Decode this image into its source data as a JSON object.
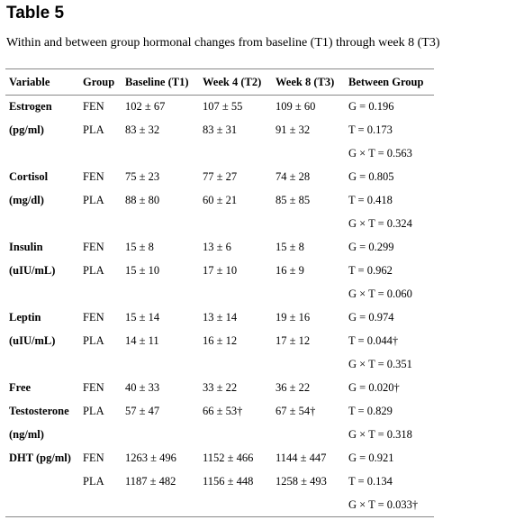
{
  "title": "Table 5",
  "caption": "Within and between group hormonal changes from baseline (T1) through week 8 (T3)",
  "headers": [
    "Variable",
    "Group",
    "Baseline (T1)",
    "Week 4 (T2)",
    "Week 8 (T3)",
    "Between Group"
  ],
  "rows": [
    [
      "Estrogen",
      "FEN",
      "102 ± 67",
      "107 ± 55",
      "109 ± 60",
      "G = 0.196"
    ],
    [
      "(pg/ml)",
      "PLA",
      "83 ± 32",
      "83 ± 31",
      "91 ± 32",
      "T = 0.173"
    ],
    [
      "",
      "",
      "",
      "",
      "",
      "G × T = 0.563"
    ],
    [
      "Cortisol",
      "FEN",
      "75 ± 23",
      "77 ± 27",
      "74 ± 28",
      "G = 0.805"
    ],
    [
      "(mg/dl)",
      "PLA",
      "88 ± 80",
      "60 ± 21",
      "85 ± 85",
      "T = 0.418"
    ],
    [
      "",
      "",
      "",
      "",
      "",
      "G × T = 0.324"
    ],
    [
      "Insulin",
      "FEN",
      "15 ± 8",
      "13 ± 6",
      "15 ± 8",
      "G = 0.299"
    ],
    [
      "(uIU/mL)",
      "PLA",
      "15 ± 10",
      "17 ± 10",
      "16 ± 9",
      "T = 0.962"
    ],
    [
      "",
      "",
      "",
      "",
      "",
      "G × T = 0.060"
    ],
    [
      "Leptin",
      "FEN",
      "15 ± 14",
      "13 ± 14",
      "19 ± 16",
      "G = 0.974"
    ],
    [
      "(uIU/mL)",
      "PLA",
      "14 ± 11",
      "16 ± 12",
      "17 ± 12",
      "T = 0.044†"
    ],
    [
      "",
      "",
      "",
      "",
      "",
      "G × T = 0.351"
    ],
    [
      "Free",
      "FEN",
      "40 ± 33",
      "33 ± 22",
      "36 ± 22",
      "G = 0.020†"
    ],
    [
      "Testosterone",
      "PLA",
      "57 ± 47",
      "66 ± 53†",
      "67 ± 54†",
      "T = 0.829"
    ],
    [
      "(ng/ml)",
      "",
      "",
      "",
      "",
      "G × T = 0.318"
    ],
    [
      "DHT (pg/ml)",
      "FEN",
      "1263 ± 496",
      "1152 ± 466",
      "1144 ± 447",
      "G = 0.921"
    ],
    [
      "",
      "PLA",
      "1187 ± 482",
      "1156 ± 448",
      "1258 ± 493",
      "T = 0.134"
    ],
    [
      "",
      "",
      "",
      "",
      "",
      "G × T = 0.033†"
    ]
  ]
}
